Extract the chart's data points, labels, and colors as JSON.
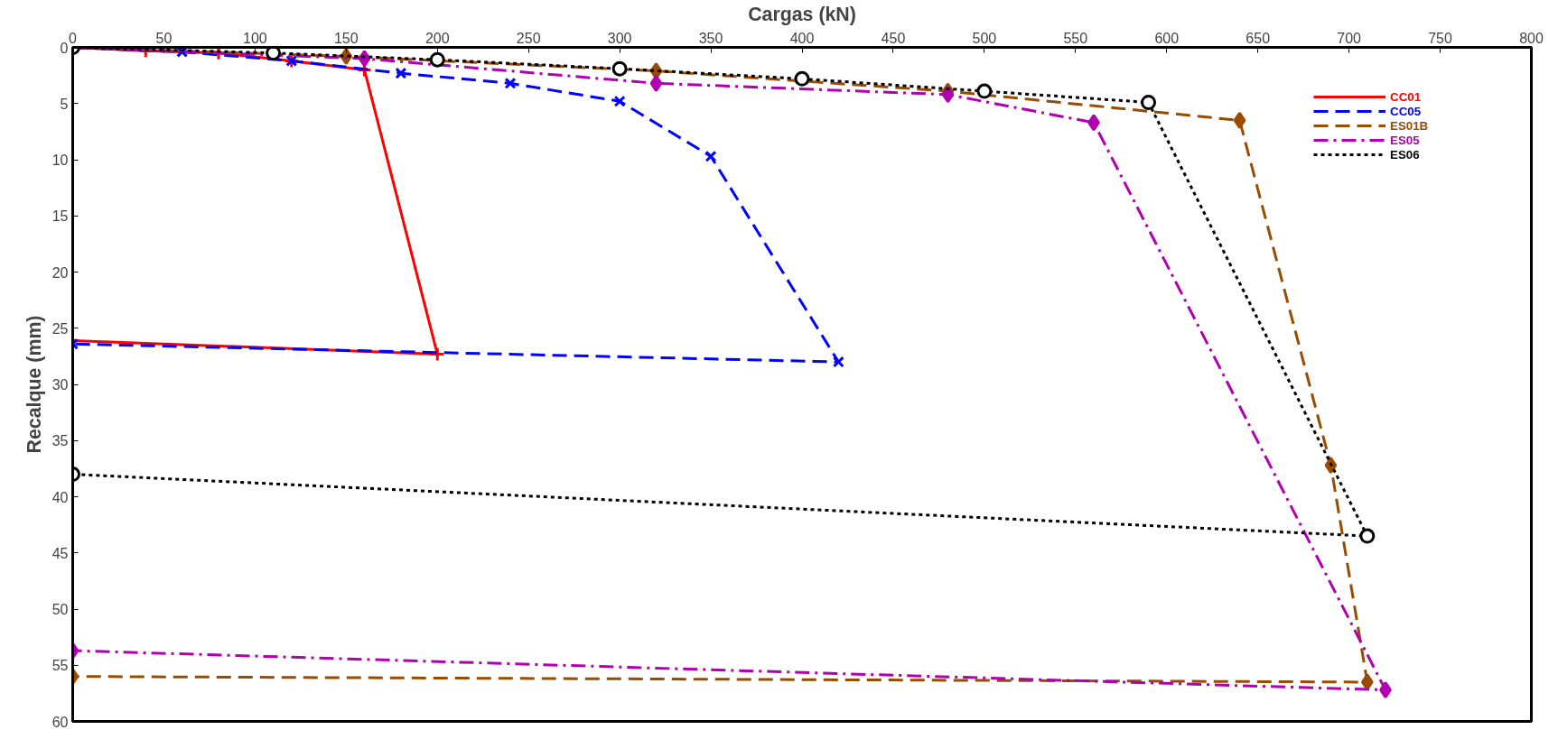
{
  "chart_data": {
    "type": "line",
    "xlabel": "Cargas (kN)",
    "ylabel": "Recalque (mm)",
    "xlim": [
      0,
      800
    ],
    "xticks": [
      0,
      50,
      100,
      150,
      200,
      250,
      300,
      350,
      400,
      450,
      500,
      550,
      600,
      650,
      700,
      750,
      800
    ],
    "ylim": [
      60,
      0
    ],
    "yticks": [
      0,
      5,
      10,
      15,
      20,
      25,
      30,
      35,
      40,
      45,
      50,
      55,
      60
    ],
    "grid": false,
    "legend": "top right",
    "series": [
      {
        "name": "CC01",
        "color": "#ff0000",
        "marker": "cross",
        "line_style": "solid",
        "x": [
          0,
          40,
          80,
          120,
          160,
          200,
          0
        ],
        "values": [
          0,
          0.3,
          0.5,
          1.2,
          2,
          27.3,
          26.1
        ]
      },
      {
        "name": "CC05",
        "color": "#0000ff",
        "marker": "x",
        "line_style": "dashed",
        "x": [
          0,
          60,
          120,
          180,
          240,
          300,
          350,
          420,
          0
        ],
        "values": [
          0,
          0.4,
          1.2,
          2.3,
          3.2,
          4.8,
          9.7,
          28,
          26.4
        ]
      },
      {
        "name": "ES01B",
        "color": "#994c00",
        "marker": "diamond",
        "line_style": "dashed",
        "x": [
          0,
          150,
          320,
          480,
          640,
          690,
          710,
          0
        ],
        "values": [
          0,
          0.8,
          2.1,
          3.9,
          6.5,
          37.2,
          56.5,
          56
        ]
      },
      {
        "name": "ES05",
        "color": "#b000b0",
        "marker": "diamond",
        "line_style": "dashdot",
        "x": [
          0,
          160,
          320,
          480,
          560,
          720,
          0
        ],
        "values": [
          0,
          1,
          3.2,
          4.2,
          6.7,
          57.2,
          53.7
        ]
      },
      {
        "name": "ES06",
        "color": "#000000",
        "marker": "circle",
        "line_style": "dotted",
        "x": [
          0,
          110,
          200,
          300,
          400,
          500,
          590,
          710,
          0
        ],
        "values": [
          0,
          0.5,
          1.1,
          1.9,
          2.8,
          3.9,
          4.9,
          43.5,
          38
        ]
      }
    ]
  }
}
